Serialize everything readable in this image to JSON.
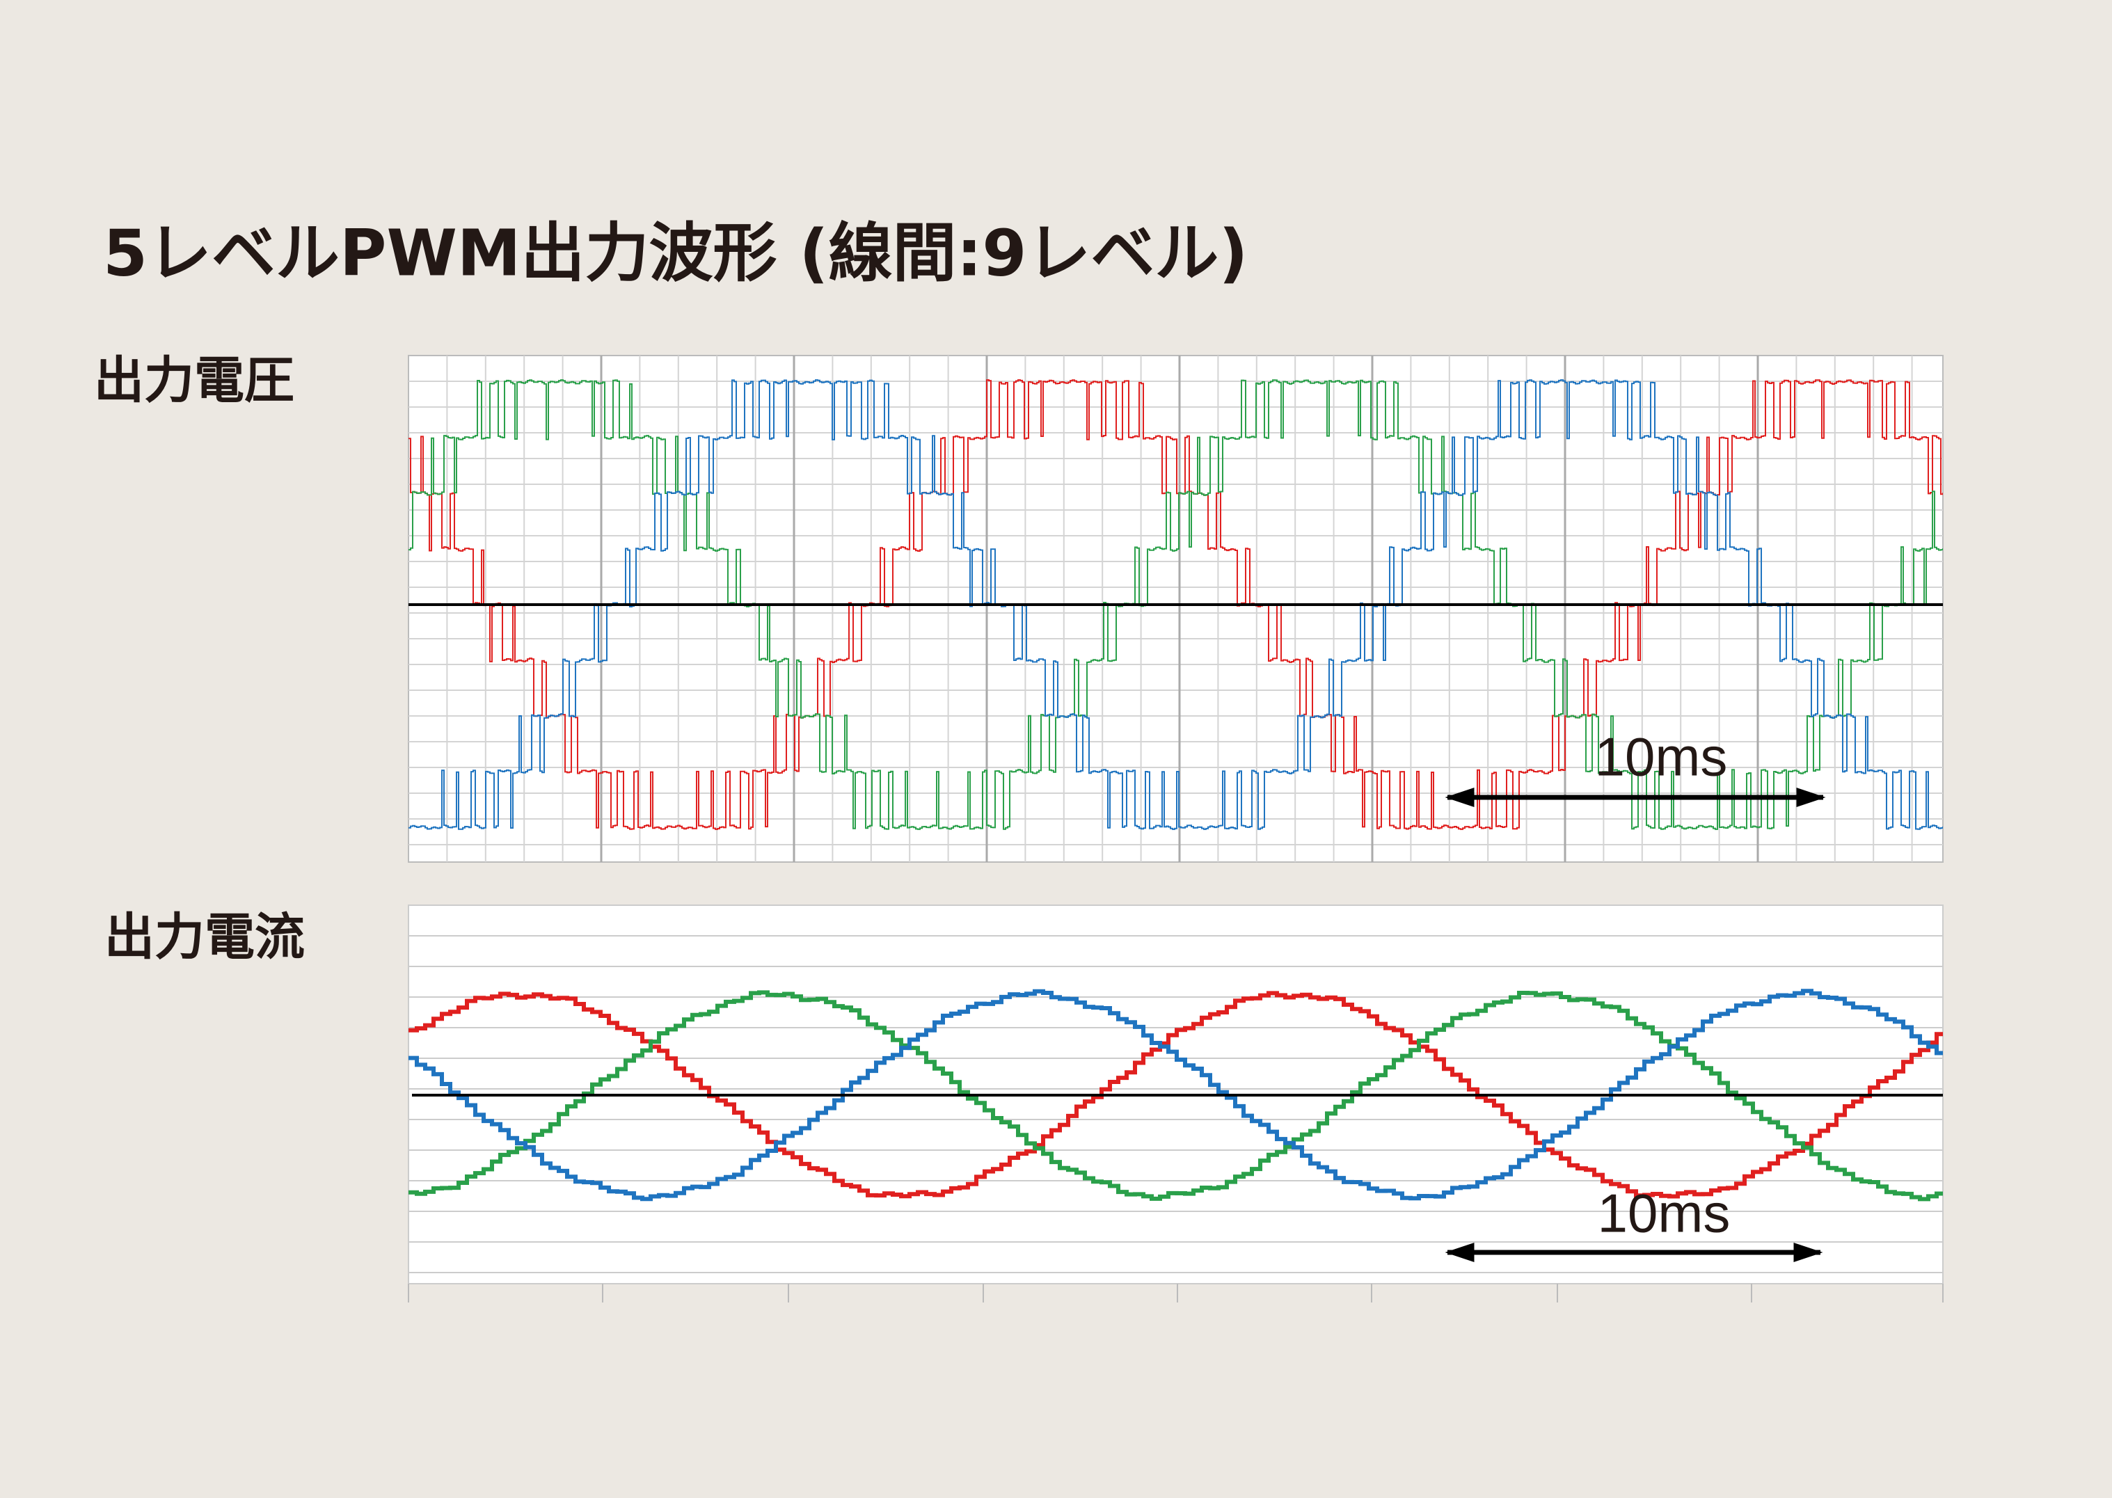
{
  "header": {
    "title": "5レベルPWM出力波形 (線間:9レベル)"
  },
  "panels": [
    {
      "label": "出力電圧",
      "scale_label": "10ms"
    },
    {
      "label": "出力電流",
      "scale_label": "10ms"
    }
  ]
}
